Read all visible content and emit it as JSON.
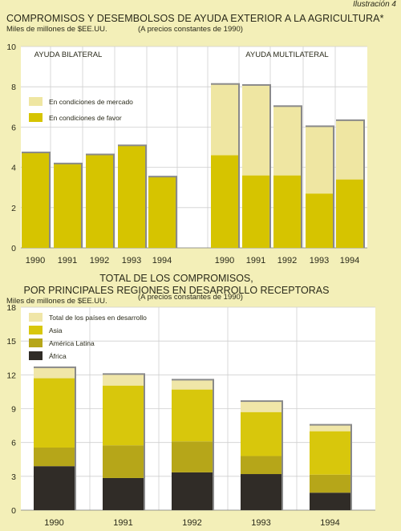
{
  "header": {
    "label": "Ilustración 4"
  },
  "colors": {
    "background": "#f3efb8",
    "plot_background": "#ffffff",
    "gridline": "#cfcfcf",
    "favor": "#d6c400",
    "mercado": "#efe6a2",
    "total": "#f0e6a8",
    "asia": "#d8c70c",
    "america": "#b6a619",
    "africa": "#302c27",
    "shadow": "#8a8a8a"
  },
  "chart_data": [
    {
      "type": "bar",
      "stacked": true,
      "title": "COMPROMISOS Y DESEMBOLSOS DE AYUDA EXTERIOR A LA AGRICULTURA*",
      "subtitle": "(A precios constantes de 1990)",
      "ylabel": "Miles de millones de $EE.UU.",
      "ylim": [
        0,
        10
      ],
      "yticks": [
        0,
        2,
        4,
        6,
        8,
        10
      ],
      "grid": true,
      "legend_position": "top-left",
      "groups": [
        {
          "label": "AYUDA BILATERAL",
          "categories": [
            "1990",
            "1991",
            "1992",
            "1993",
            "1994"
          ],
          "series": [
            {
              "name": "En condiciones de favor",
              "values": [
                4.7,
                4.15,
                4.6,
                5.05,
                3.5
              ]
            },
            {
              "name": "En condiciones de mercado",
              "values": [
                0,
                0,
                0,
                0,
                0
              ]
            }
          ]
        },
        {
          "label": "AYUDA MULTILATERAL",
          "categories": [
            "1990",
            "1991",
            "1992",
            "1993",
            "1994"
          ],
          "series": [
            {
              "name": "En condiciones de favor",
              "values": [
                4.6,
                3.6,
                3.6,
                2.7,
                3.4
              ]
            },
            {
              "name": "En condiciones de mercado",
              "values": [
                3.5,
                4.45,
                3.4,
                3.3,
                2.9
              ]
            }
          ]
        }
      ],
      "legend": [
        {
          "name": "En condiciones de mercado",
          "color": "#efe6a2"
        },
        {
          "name": "En condiciones de favor",
          "color": "#d6c400"
        }
      ]
    },
    {
      "type": "bar",
      "stacked": true,
      "title_lines": [
        "TOTAL DE LOS COMPROMISOS,",
        "POR PRINCIPALES REGIONES EN DESARROLLO RECEPTORAS"
      ],
      "subtitle": "(A precios constantes de 1990)",
      "ylabel": "Miles de millones de $EE.UU.",
      "ylim": [
        0,
        18
      ],
      "yticks": [
        0,
        3,
        6,
        9,
        12,
        15,
        18
      ],
      "grid": true,
      "legend_position": "top-left",
      "categories": [
        "1990",
        "1991",
        "1992",
        "1993",
        "1994"
      ],
      "series": [
        {
          "name": "África",
          "values": [
            3.9,
            2.85,
            3.35,
            3.2,
            1.55
          ]
        },
        {
          "name": "América Latina",
          "values": [
            1.65,
            2.9,
            2.75,
            1.6,
            1.6
          ]
        },
        {
          "name": "Asia",
          "values": [
            6.15,
            5.3,
            4.6,
            3.9,
            3.85
          ]
        },
        {
          "name": "Total de los países en desarrollo",
          "values": [
            0.9,
            0.95,
            0.8,
            0.9,
            0.5
          ]
        }
      ],
      "legend": [
        {
          "name": "Total de los países en desarrollo",
          "color": "#f0e6a8"
        },
        {
          "name": "Asia",
          "color": "#d8c70c"
        },
        {
          "name": "América Latina",
          "color": "#b6a619"
        },
        {
          "name": "África",
          "color": "#302c27"
        }
      ]
    }
  ]
}
